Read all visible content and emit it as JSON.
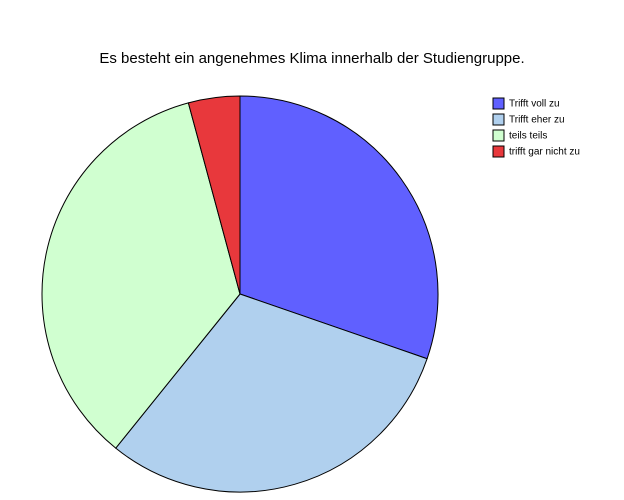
{
  "chart_data": {
    "type": "pie",
    "title": "Es besteht ein angenehmes Klima innerhalb der Studiengruppe.",
    "categories": [
      "Trifft voll zu",
      "Trifft eher zu",
      "teils teils",
      "trifft gar nicht zu"
    ],
    "values": [
      30.3,
      30.5,
      35.0,
      4.2
    ],
    "colors": [
      "#6060ff",
      "#b0d0ee",
      "#d0ffd0",
      "#e8383c"
    ],
    "legend": "top-right"
  }
}
